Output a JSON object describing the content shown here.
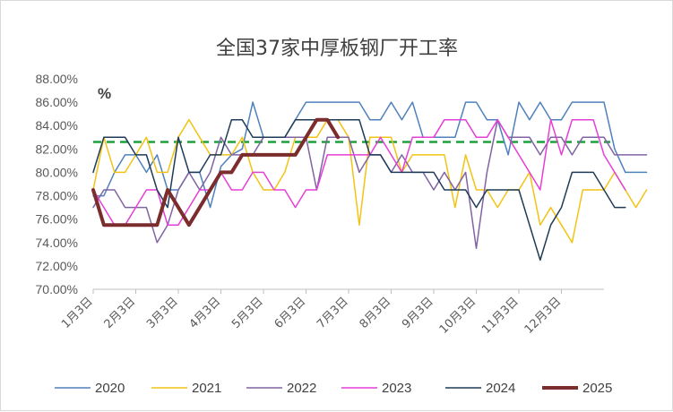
{
  "chart_data": {
    "type": "line",
    "title": "全国37家中厚板钢厂开工率",
    "unit_label": "%",
    "ylim": [
      70,
      88
    ],
    "y_ticks": [
      "70.00%",
      "72.00%",
      "74.00%",
      "76.00%",
      "78.00%",
      "80.00%",
      "82.00%",
      "84.00%",
      "86.00%",
      "88.00%"
    ],
    "x_ticks": [
      "1月3日",
      "2月3日",
      "3月3日",
      "4月3日",
      "5月3日",
      "6月3日",
      "7月3日",
      "8月3日",
      "9月3日",
      "10月3日",
      "11月3日",
      "12月3日"
    ],
    "x_tick_weeks": [
      0,
      4,
      8,
      12,
      16,
      20,
      24,
      28,
      32,
      36,
      40,
      44
    ],
    "x_axis_weeks": 48,
    "grid": false,
    "legend": "bottom",
    "reference_line": {
      "value": 82.6,
      "color": "#1ea03c",
      "style": "dashed"
    },
    "series": [
      {
        "name": "2020",
        "color": "#4f81bd",
        "width": 1.5,
        "values": [
          78,
          78,
          80,
          81.5,
          81.5,
          80,
          81.5,
          78.5,
          78.5,
          80,
          80,
          77,
          80.5,
          81.5,
          82,
          86,
          83,
          83,
          83,
          84.5,
          86,
          86,
          86,
          86,
          86,
          86,
          84.5,
          84.5,
          86,
          84.5,
          86,
          83,
          83,
          83,
          83,
          86,
          86,
          84.5,
          84.5,
          81.5,
          86,
          84.5,
          86,
          84.5,
          84.5,
          86,
          86,
          86,
          86,
          82,
          80,
          80,
          80
        ]
      },
      {
        "name": "2021",
        "color": "#f2c314",
        "width": 1.5,
        "values": [
          78.5,
          83,
          80,
          80,
          81.5,
          83,
          80,
          80,
          83,
          84.5,
          83,
          81.5,
          81.5,
          81.5,
          83,
          80,
          78.5,
          78.5,
          80,
          83,
          83,
          83,
          84.5,
          84.5,
          83,
          75.5,
          83,
          83,
          83,
          80,
          81.5,
          81.5,
          81.5,
          81.5,
          77,
          81.5,
          78.5,
          78.5,
          77,
          78.5,
          78.5,
          80,
          75.5,
          77,
          75.5,
          74,
          78.5,
          78.5,
          78.5,
          80,
          78.5,
          77,
          78.5
        ]
      },
      {
        "name": "2022",
        "color": "#8064a2",
        "width": 1.5,
        "values": [
          77,
          78.5,
          78.5,
          77,
          77,
          77,
          74,
          75.5,
          78.5,
          80,
          78.5,
          80,
          83,
          81.5,
          81.5,
          81.5,
          83,
          83,
          83,
          83,
          83,
          78.5,
          83,
          83,
          83,
          80,
          81.5,
          81.5,
          80,
          81.5,
          80,
          80,
          78.5,
          80,
          78.5,
          80,
          73.5,
          80,
          84.5,
          83,
          83,
          83,
          81.5,
          83,
          83,
          81.5,
          83,
          83,
          83,
          81.5,
          81.5,
          81.5,
          81.5
        ]
      },
      {
        "name": "2023",
        "color": "#e63fd6",
        "width": 1.5,
        "values": [
          78.5,
          77,
          75.5,
          75.5,
          77,
          78.5,
          78.5,
          75.5,
          75.5,
          77,
          78.5,
          78.5,
          80,
          78.5,
          78.5,
          80,
          80,
          78.5,
          78.5,
          77,
          78.5,
          78.5,
          81.5,
          81.5,
          81.5,
          81.5,
          81.5,
          83,
          81.5,
          80,
          83,
          83,
          83,
          84.5,
          84.5,
          84.5,
          83,
          83,
          84.5,
          83,
          81.5,
          80,
          78.5,
          84.5,
          81.5,
          84.5,
          84.5,
          84.5,
          81.5,
          80,
          78.5
        ]
      },
      {
        "name": "2024",
        "color": "#1f3b57",
        "width": 1.5,
        "values": [
          80,
          83,
          83,
          83,
          81.5,
          81.5,
          78.5,
          77,
          83,
          80,
          80,
          81.5,
          81.5,
          84.5,
          84.5,
          83,
          83,
          83,
          83,
          84.5,
          84.5,
          84.5,
          84.5,
          84.5,
          84.5,
          84.5,
          81.5,
          81.5,
          80,
          80,
          80,
          80,
          80,
          78.5,
          78.5,
          78.5,
          77,
          78.5,
          78.5,
          78.5,
          78.5,
          75.5,
          72.5,
          75.5,
          77,
          80,
          80,
          80,
          78.5,
          77,
          77
        ]
      },
      {
        "name": "2025",
        "color": "#7b2c2c",
        "width": 4,
        "values": [
          78.5,
          75.5,
          75.5,
          75.5,
          75.5,
          75.5,
          75.5,
          78.5,
          77,
          75.5,
          77,
          78.5,
          80,
          80,
          81.5,
          81.5,
          81.5,
          81.5,
          81.5,
          81.5,
          83,
          84.5,
          84.5,
          83
        ]
      }
    ]
  }
}
